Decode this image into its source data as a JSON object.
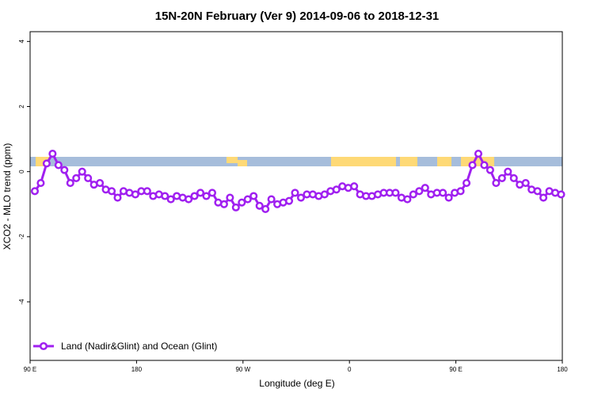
{
  "chart_data": {
    "type": "line",
    "title": "15N-20N February (Ver 9)   2014-09-06 to 2018-12-31",
    "x_label": "Longitude (deg E)",
    "y_label": "XCO2 - MLO trend (ppm)",
    "x": [
      94,
      99,
      104,
      109,
      114,
      119,
      124,
      129,
      134,
      139,
      144,
      149,
      154,
      159,
      164,
      169,
      174,
      179,
      184,
      189,
      194,
      199,
      204,
      209,
      214,
      219,
      224,
      229,
      234,
      239,
      244,
      249,
      254,
      259,
      264,
      269,
      274,
      279,
      284,
      289,
      294,
      299,
      304,
      309,
      314,
      319,
      324,
      329,
      334,
      339,
      344,
      349,
      354,
      359,
      364,
      369,
      374,
      379,
      384,
      389,
      394,
      399,
      404,
      409,
      414,
      419,
      424,
      429,
      434,
      439,
      444,
      449,
      454,
      459,
      464,
      469,
      474,
      479,
      484,
      489,
      494,
      499,
      504,
      509,
      514,
      519,
      524,
      529,
      534,
      539
    ],
    "series": [
      {
        "name": "Land (Nadir&Glint) and Ocean (Glint)",
        "color": "#a020f0",
        "values": [
          -0.6,
          -0.35,
          0.25,
          0.55,
          0.2,
          0.05,
          -0.35,
          -0.2,
          0,
          -0.2,
          -0.4,
          -0.35,
          -0.55,
          -0.6,
          -0.8,
          -0.6,
          -0.65,
          -0.7,
          -0.6,
          -0.6,
          -0.75,
          -0.7,
          -0.75,
          -0.85,
          -0.75,
          -0.8,
          -0.85,
          -0.75,
          -0.65,
          -0.75,
          -0.65,
          -0.95,
          -1.0,
          -0.8,
          -1.1,
          -0.95,
          -0.85,
          -0.75,
          -1.05,
          -1.15,
          -0.85,
          -1.0,
          -0.95,
          -0.9,
          -0.65,
          -0.8,
          -0.7,
          -0.7,
          -0.75,
          -0.7,
          -0.6,
          -0.55,
          -0.45,
          -0.5,
          -0.45,
          -0.7,
          -0.75,
          -0.75,
          -0.7,
          -0.65,
          -0.65,
          -0.65,
          -0.8,
          -0.85,
          -0.7,
          -0.6,
          -0.5,
          -0.7,
          -0.65,
          -0.65,
          -0.8,
          -0.65,
          -0.6,
          -0.35,
          0.2,
          0.55,
          0.2,
          0.05,
          -0.35,
          -0.2,
          0,
          -0.2,
          -0.4,
          -0.35,
          -0.55,
          -0.6,
          -0.8,
          -0.6,
          -0.65,
          -0.7
        ]
      }
    ],
    "xlim": [
      90,
      540
    ],
    "xticks": [
      {
        "value": 90,
        "label": "90 E"
      },
      180,
      {
        "value": 270,
        "label": "90 W"
      },
      {
        "value": 360,
        "label": "0"
      },
      {
        "value": 450,
        "label": "90 E"
      },
      {
        "value": 540,
        "label": "180"
      }
    ],
    "ylim": [
      -5.8,
      4.3
    ],
    "yticks": [
      -4,
      -2,
      0,
      2,
      4
    ],
    "legend": "bottom-left"
  }
}
